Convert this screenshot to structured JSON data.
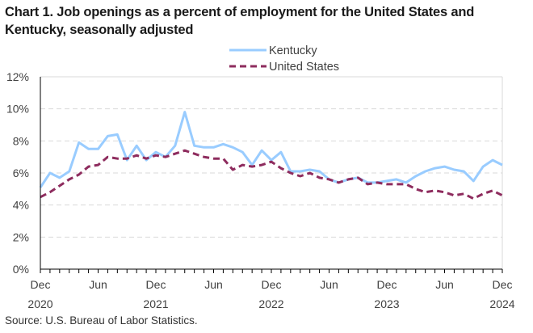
{
  "chart_data": {
    "type": "line",
    "title": "Chart 1. Job openings as a percent of employment for the United States and Kentucky, seasonally adjusted",
    "xlabel": "",
    "ylabel": "",
    "ylim": [
      0,
      12
    ],
    "y_ticks": [
      0,
      2,
      4,
      6,
      8,
      10,
      12
    ],
    "y_tick_labels": [
      "0%",
      "2%",
      "4%",
      "6%",
      "8%",
      "10%",
      "12%"
    ],
    "y_tick_format": "%",
    "grid": "horizontal dashed",
    "legend_position": "top-center",
    "x": [
      "Dec 2020",
      "Jan 2021",
      "Feb 2021",
      "Mar 2021",
      "Apr 2021",
      "May 2021",
      "Jun 2021",
      "Jul 2021",
      "Aug 2021",
      "Sep 2021",
      "Oct 2021",
      "Nov 2021",
      "Dec 2021",
      "Jan 2022",
      "Feb 2022",
      "Mar 2022",
      "Apr 2022",
      "May 2022",
      "Jun 2022",
      "Jul 2022",
      "Aug 2022",
      "Sep 2022",
      "Oct 2022",
      "Nov 2022",
      "Dec 2022",
      "Jan 2023",
      "Feb 2023",
      "Mar 2023",
      "Apr 2023",
      "May 2023",
      "Jun 2023",
      "Jul 2023",
      "Aug 2023",
      "Sep 2023",
      "Oct 2023",
      "Nov 2023",
      "Dec 2023",
      "Jan 2024",
      "Feb 2024",
      "Mar 2024",
      "Apr 2024",
      "May 2024",
      "Jun 2024",
      "Jul 2024",
      "Aug 2024",
      "Sep 2024",
      "Oct 2024",
      "Nov 2024",
      "Dec 2024"
    ],
    "x_tick_labels": [
      {
        "index": 0,
        "month": "Dec",
        "year": "2020"
      },
      {
        "index": 6,
        "month": "Jun",
        "year": ""
      },
      {
        "index": 12,
        "month": "Dec",
        "year": "2021"
      },
      {
        "index": 18,
        "month": "Jun",
        "year": ""
      },
      {
        "index": 24,
        "month": "Dec",
        "year": "2022"
      },
      {
        "index": 30,
        "month": "Jun",
        "year": ""
      },
      {
        "index": 36,
        "month": "Dec",
        "year": "2023"
      },
      {
        "index": 42,
        "month": "Jun",
        "year": ""
      },
      {
        "index": 48,
        "month": "Dec",
        "year": "2024"
      }
    ],
    "series": [
      {
        "name": "Kentucky",
        "color": "#99CCFF",
        "style": "solid",
        "values": [
          5.1,
          6.0,
          5.7,
          6.1,
          7.9,
          7.5,
          7.5,
          8.3,
          8.4,
          6.8,
          7.7,
          6.8,
          7.3,
          7.0,
          7.7,
          9.8,
          7.7,
          7.6,
          7.6,
          7.8,
          7.6,
          7.3,
          6.5,
          7.4,
          6.8,
          7.3,
          6.1,
          6.1,
          6.2,
          6.1,
          5.6,
          5.4,
          5.6,
          5.7,
          5.4,
          5.4,
          5.5,
          5.6,
          5.4,
          5.8,
          6.1,
          6.3,
          6.4,
          6.2,
          6.1,
          5.5,
          6.4,
          6.8,
          6.5
        ]
      },
      {
        "name": "United States",
        "color": "#8E2C5E",
        "style": "dashed",
        "values": [
          4.5,
          4.8,
          5.2,
          5.6,
          5.9,
          6.4,
          6.5,
          7.0,
          6.9,
          6.9,
          7.1,
          6.9,
          7.1,
          7.0,
          7.2,
          7.4,
          7.2,
          7.0,
          6.9,
          6.9,
          6.2,
          6.5,
          6.4,
          6.5,
          6.7,
          6.3,
          6.0,
          5.8,
          6.0,
          5.7,
          5.6,
          5.4,
          5.6,
          5.7,
          5.3,
          5.4,
          5.3,
          5.3,
          5.3,
          5.0,
          4.8,
          4.9,
          4.8,
          4.6,
          4.7,
          4.4,
          4.7,
          4.9,
          4.6
        ]
      }
    ],
    "source": "Source: U.S. Bureau of Labor Statistics."
  },
  "colors": {
    "axis": "#000000",
    "grid": "#d9d9d9",
    "tick_text": "#404040"
  }
}
